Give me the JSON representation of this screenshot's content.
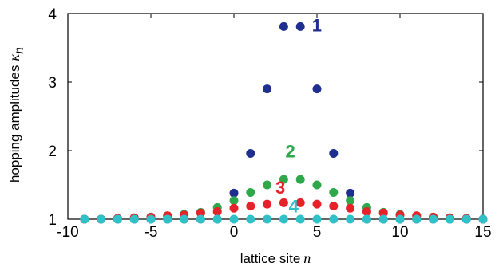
{
  "chart_data": {
    "type": "scatter",
    "title": "",
    "xlabel": "lattice site",
    "xlabel_symbol": "n",
    "ylabel": "hopping amplitudes",
    "ylabel_symbol": "κ",
    "ylabel_subscript": "n",
    "xlim": [
      -10,
      15
    ],
    "ylim": [
      1,
      4
    ],
    "xticks": [
      "-10",
      "-5",
      "0",
      "5",
      "10",
      "15"
    ],
    "yticks": [
      "1",
      "2",
      "3",
      "4"
    ],
    "grid": false,
    "series": [
      {
        "name": "1",
        "color": "#1f2f8f",
        "points": [
          [
            -9,
            1
          ],
          [
            -8,
            1
          ],
          [
            -7,
            1
          ],
          [
            -6,
            1
          ],
          [
            -5,
            1
          ],
          [
            -4,
            1
          ],
          [
            -3,
            1
          ],
          [
            -2,
            1
          ],
          [
            -1,
            1
          ],
          [
            0,
            1.38
          ],
          [
            1,
            1.96
          ],
          [
            2,
            2.9
          ],
          [
            3,
            3.81
          ],
          [
            4,
            3.81
          ],
          [
            5,
            2.9
          ],
          [
            6,
            1.96
          ],
          [
            7,
            1.38
          ],
          [
            8,
            1
          ],
          [
            9,
            1
          ],
          [
            10,
            1
          ],
          [
            11,
            1
          ],
          [
            12,
            1
          ],
          [
            13,
            1
          ],
          [
            14,
            1
          ],
          [
            15,
            1
          ]
        ]
      },
      {
        "name": "2",
        "color": "#2ea84a",
        "points": [
          [
            -9,
            1
          ],
          [
            -8,
            1
          ],
          [
            -7,
            1.01
          ],
          [
            -6,
            1.02
          ],
          [
            -5,
            1.03
          ],
          [
            -4,
            1.05
          ],
          [
            -3,
            1.07
          ],
          [
            -2,
            1.1
          ],
          [
            -1,
            1.17
          ],
          [
            0,
            1.27
          ],
          [
            1,
            1.39
          ],
          [
            2,
            1.5
          ],
          [
            3,
            1.58
          ],
          [
            4,
            1.58
          ],
          [
            5,
            1.5
          ],
          [
            6,
            1.39
          ],
          [
            7,
            1.27
          ],
          [
            8,
            1.17
          ],
          [
            9,
            1.1
          ],
          [
            10,
            1.07
          ],
          [
            11,
            1.05
          ],
          [
            12,
            1.03
          ],
          [
            13,
            1.02
          ],
          [
            14,
            1.01
          ],
          [
            15,
            1
          ]
        ]
      },
      {
        "name": "3",
        "color": "#e8202a",
        "points": [
          [
            -9,
            1
          ],
          [
            -8,
            1
          ],
          [
            -7,
            1.01
          ],
          [
            -6,
            1.02
          ],
          [
            -5,
            1.03
          ],
          [
            -4,
            1.05
          ],
          [
            -3,
            1.06
          ],
          [
            -2,
            1.09
          ],
          [
            -1,
            1.11
          ],
          [
            0,
            1.16
          ],
          [
            1,
            1.19
          ],
          [
            2,
            1.22
          ],
          [
            3,
            1.24
          ],
          [
            4,
            1.24
          ],
          [
            5,
            1.22
          ],
          [
            6,
            1.19
          ],
          [
            7,
            1.16
          ],
          [
            8,
            1.11
          ],
          [
            9,
            1.09
          ],
          [
            10,
            1.06
          ],
          [
            11,
            1.05
          ],
          [
            12,
            1.03
          ],
          [
            13,
            1.02
          ],
          [
            14,
            1.01
          ],
          [
            15,
            1
          ]
        ]
      },
      {
        "name": "4",
        "color": "#2fc0c8",
        "points": [
          [
            -9,
            1
          ],
          [
            -8,
            1
          ],
          [
            -7,
            1
          ],
          [
            -6,
            1
          ],
          [
            -5,
            1
          ],
          [
            -4,
            1
          ],
          [
            -3,
            1
          ],
          [
            -2,
            1
          ],
          [
            -1,
            1
          ],
          [
            0,
            1
          ],
          [
            1,
            1
          ],
          [
            2,
            1
          ],
          [
            3,
            1
          ],
          [
            4,
            1
          ],
          [
            5,
            1
          ],
          [
            6,
            1
          ],
          [
            7,
            1
          ],
          [
            8,
            1
          ],
          [
            9,
            1
          ],
          [
            10,
            1
          ],
          [
            11,
            1
          ],
          [
            12,
            1
          ],
          [
            13,
            1
          ],
          [
            14,
            1
          ],
          [
            15,
            1
          ]
        ]
      }
    ],
    "annotations": [
      {
        "text": "1",
        "x": 4.7,
        "y": 3.74,
        "color": "#1f2f8f"
      },
      {
        "text": "2",
        "x": 3.1,
        "y": 1.9,
        "color": "#2ea84a"
      },
      {
        "text": "3",
        "x": 2.5,
        "y": 1.37,
        "color": "#e8202a"
      },
      {
        "text": "4",
        "x": 3.3,
        "y": 1.1,
        "color": "#2fc0c8"
      }
    ]
  }
}
